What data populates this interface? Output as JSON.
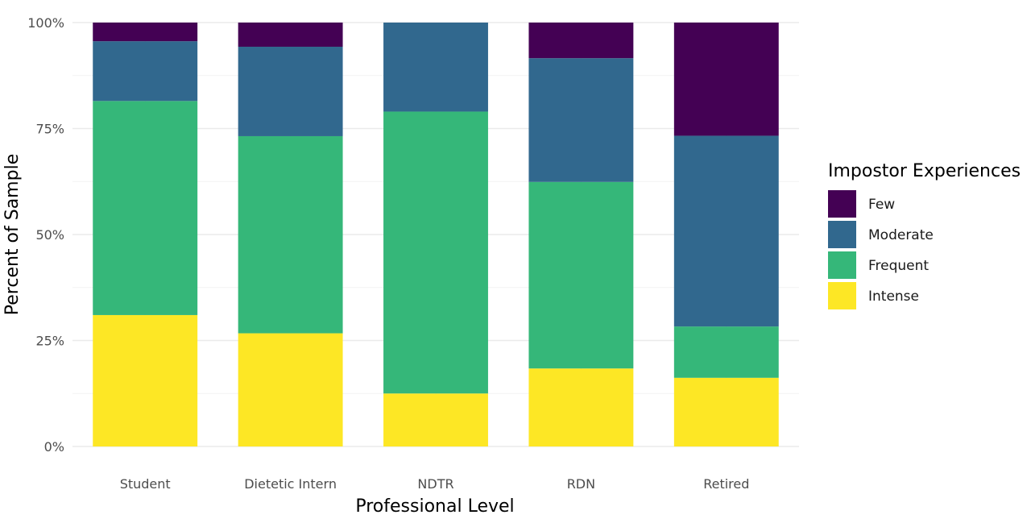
{
  "chart_data": {
    "type": "bar",
    "stacked": true,
    "xlabel": "Professional Level",
    "ylabel": "Percent of Sample",
    "ylim": [
      0,
      100
    ],
    "y_ticks": [
      {
        "value": 0,
        "label": "0%"
      },
      {
        "value": 25,
        "label": "25%"
      },
      {
        "value": 50,
        "label": "50%"
      },
      {
        "value": 75,
        "label": "75%"
      },
      {
        "value": 100,
        "label": "100%"
      }
    ],
    "grid": true,
    "legend": {
      "title": "Impostor Experiences",
      "position": "right"
    },
    "categories": [
      "Student",
      "Dietetic Intern",
      "NDTR",
      "RDN",
      "Retired"
    ],
    "series": [
      {
        "name": "Intense",
        "color": "#fde725",
        "values": [
          31,
          26.7,
          12.5,
          18.4,
          16.2
        ]
      },
      {
        "name": "Frequent",
        "color": "#35b779",
        "values": [
          50.5,
          46.5,
          66.5,
          44,
          12.1
        ]
      },
      {
        "name": "Moderate",
        "color": "#31688e",
        "values": [
          14.1,
          21.1,
          21,
          29.2,
          45
        ]
      },
      {
        "name": "Few",
        "color": "#440154",
        "values": [
          4.4,
          5.7,
          0,
          8.4,
          26.7
        ]
      }
    ],
    "legend_order": [
      "Few",
      "Moderate",
      "Frequent",
      "Intense"
    ]
  }
}
